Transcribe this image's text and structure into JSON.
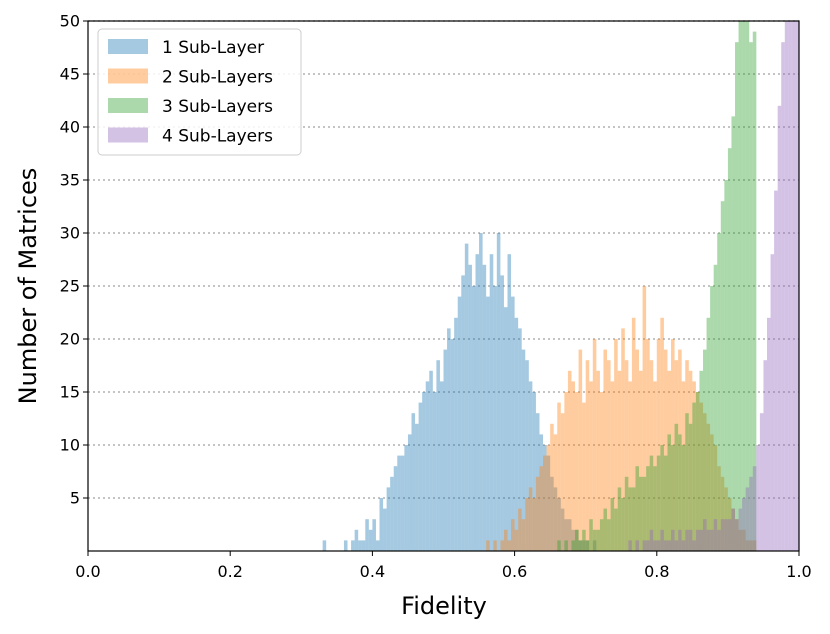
{
  "chart_data": {
    "type": "bar",
    "subtype": "overlapping-histogram",
    "title": "",
    "xlabel": "Fidelity",
    "ylabel": "Number of Matrices",
    "xlim": [
      0.0,
      1.0
    ],
    "ylim": [
      0,
      50
    ],
    "xticks": [
      "0.0",
      "0.2",
      "0.4",
      "0.6",
      "0.8",
      "1.0"
    ],
    "yticks": [
      "5",
      "10",
      "15",
      "20",
      "25",
      "30",
      "35",
      "40",
      "45",
      "50"
    ],
    "grid": "horizontal dotted",
    "legend_position": "top-left",
    "bin_width": 0.005,
    "opacity": 0.4,
    "series": [
      {
        "name": "1 Sub-Layer",
        "color": "#1f77b4",
        "bin_start": 0.33,
        "counts": [
          1,
          0,
          0,
          0,
          0,
          0,
          1,
          0,
          1,
          2,
          1,
          1,
          3,
          2,
          3,
          1,
          5,
          4,
          6,
          7,
          8,
          9,
          9,
          10,
          11,
          13,
          12,
          14,
          15,
          16,
          17,
          15,
          18,
          16,
          19,
          21,
          20,
          22,
          24,
          26,
          29,
          27,
          25,
          28,
          30,
          27,
          24,
          28,
          25,
          30,
          26,
          23,
          28,
          24,
          22,
          21,
          19,
          18,
          16,
          15,
          13,
          11,
          10,
          9,
          7,
          6,
          5,
          4,
          3,
          3,
          2,
          2,
          1,
          1,
          1,
          0,
          1
        ]
      },
      {
        "name": "2 Sub-Layers",
        "color": "#ff7f0e",
        "bin_start": 0.56,
        "counts": [
          1,
          0,
          1,
          0,
          1,
          2,
          1,
          3,
          2,
          4,
          3,
          5,
          6,
          5,
          7,
          8,
          9,
          10,
          12,
          11,
          14,
          13,
          15,
          17,
          16,
          15,
          19,
          14,
          18,
          16,
          20,
          17,
          15,
          19,
          18,
          16,
          20,
          17,
          21,
          18,
          16,
          22,
          19,
          17,
          25,
          20,
          18,
          16,
          20,
          22,
          19,
          17,
          20,
          18,
          19,
          16,
          18,
          17,
          16,
          15,
          14,
          13,
          12,
          11,
          10,
          8,
          7,
          6,
          5,
          4,
          3,
          2,
          2,
          1,
          1,
          1
        ]
      },
      {
        "name": "3 Sub-Layers",
        "color": "#2ca02c",
        "bin_start": 0.66,
        "counts": [
          1,
          0,
          1,
          0,
          1,
          2,
          1,
          2,
          1,
          3,
          2,
          2,
          3,
          4,
          3,
          5,
          4,
          6,
          5,
          7,
          6,
          6,
          8,
          7,
          7,
          8,
          9,
          8,
          9,
          10,
          9,
          11,
          10,
          12,
          11,
          10,
          13,
          12,
          14,
          15,
          17,
          19,
          22,
          25,
          27,
          30,
          33,
          35,
          38,
          41,
          48,
          50,
          51,
          50,
          48,
          49
        ]
      },
      {
        "name": "4 Sub-Layers",
        "color": "#9467bd",
        "bin_start": 0.76,
        "counts": [
          1,
          0,
          1,
          0,
          1,
          1,
          2,
          1,
          1,
          2,
          1,
          1,
          2,
          1,
          2,
          1,
          2,
          2,
          1,
          2,
          2,
          3,
          2,
          2,
          3,
          2,
          3,
          3,
          3,
          4,
          3,
          4,
          5,
          6,
          7,
          8,
          10,
          13,
          18,
          22,
          28,
          34,
          42,
          48,
          50,
          50,
          50,
          50
        ]
      }
    ]
  }
}
